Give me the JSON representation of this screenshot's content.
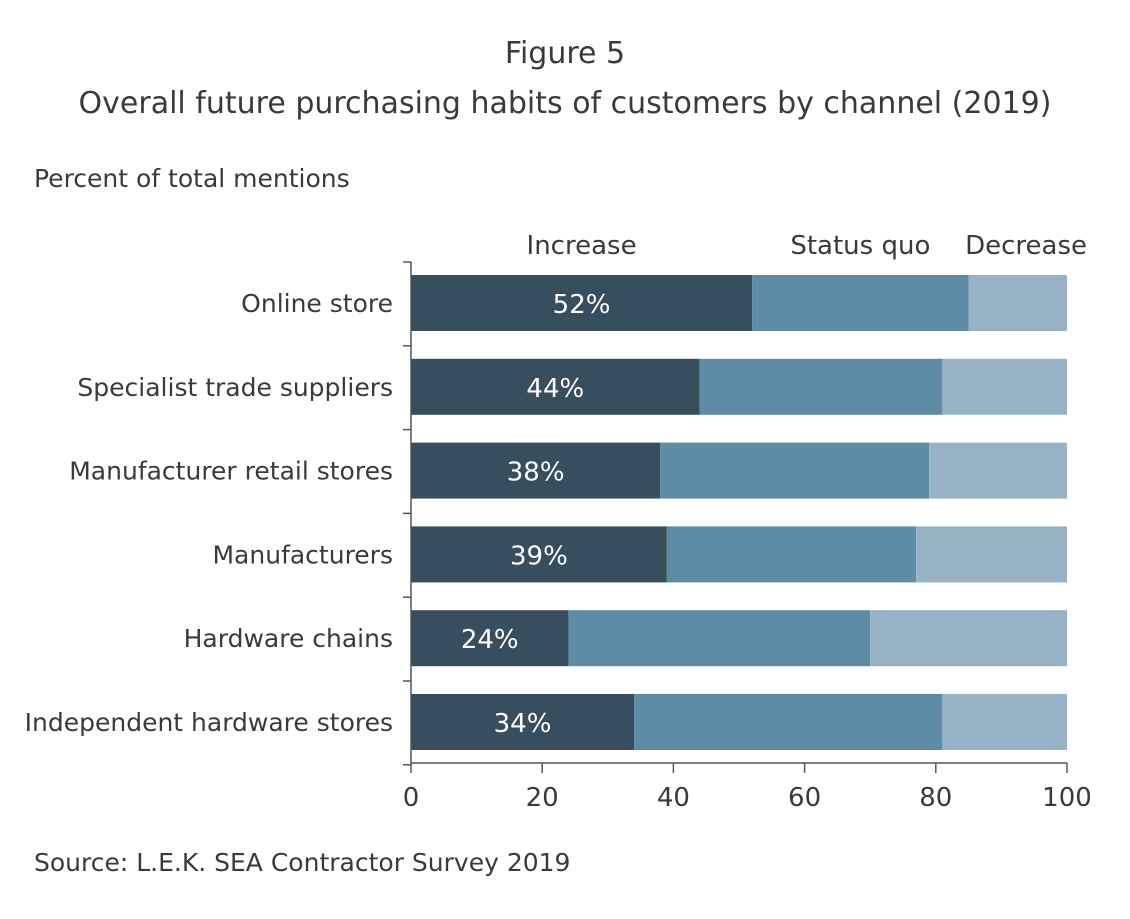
{
  "figure_label": "Figure 5",
  "source": "Source:  L.E.K. SEA Contractor Survey 2019",
  "chart_data": {
    "type": "bar",
    "orientation": "horizontal",
    "stacked": true,
    "title": "Overall future purchasing habits of customers by channel (2019)",
    "ylabel": "Percent of total mentions",
    "categories": [
      "Online store",
      "Specialist trade suppliers",
      "Manufacturer retail stores",
      "Manufacturers",
      "Hardware chains",
      "Independent hardware stores"
    ],
    "series": [
      {
        "name": "Increase",
        "values": [
          52,
          44,
          38,
          39,
          24,
          34
        ],
        "color": "#364e5e"
      },
      {
        "name": "Status quo",
        "values": [
          33,
          37,
          41,
          38,
          46,
          47
        ],
        "color": "#5e8ba6"
      },
      {
        "name": "Decrease",
        "values": [
          15,
          19,
          21,
          23,
          30,
          19
        ],
        "color": "#97b2c5"
      }
    ],
    "data_labels": [
      "52%",
      "44%",
      "38%",
      "39%",
      "24%",
      "34%"
    ],
    "xlim": [
      0,
      100
    ],
    "xticks": [
      "0",
      "20",
      "40",
      "60",
      "80",
      "100"
    ],
    "legend_placement": "top",
    "grid": false
  }
}
